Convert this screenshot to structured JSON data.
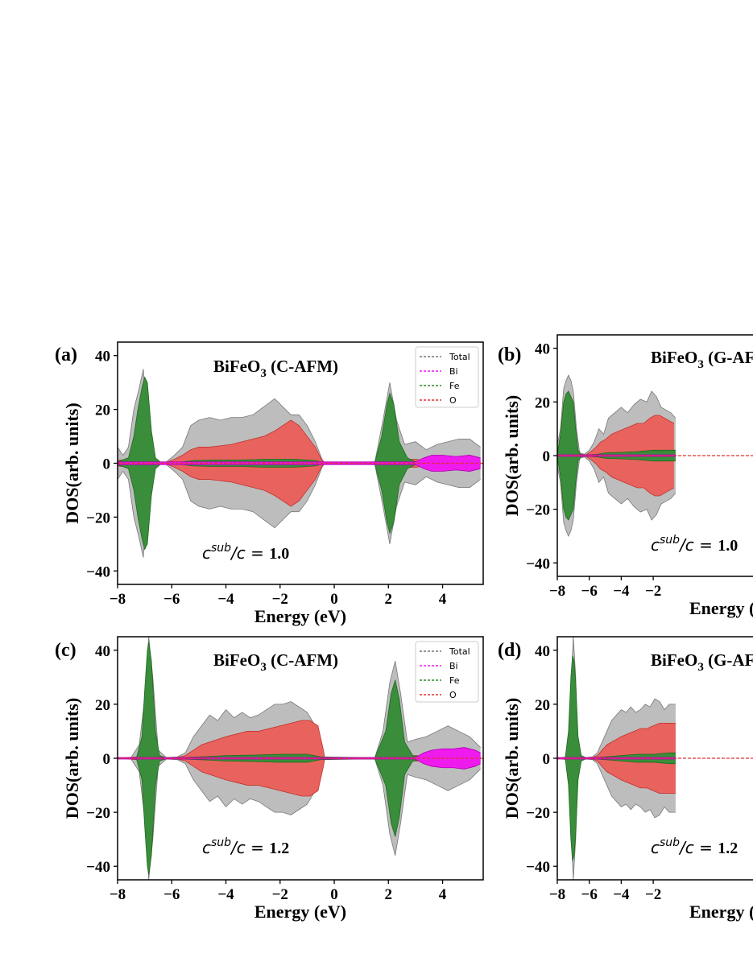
{
  "chart_data": [
    {
      "panel": "(a)",
      "type": "area",
      "title_main": "BiFeO",
      "title_sub": "3",
      "title_rest": " (C-AFM)",
      "xlabel": "Energy (eV)",
      "ylabel": "DOS(arb. units)",
      "xlim": [
        -8,
        5.5
      ],
      "ylim": [
        -45,
        45
      ],
      "xticks": [
        "-8",
        "-6",
        "-4",
        "-2",
        "0",
        "2",
        "4"
      ],
      "yticks": [
        "-40",
        "-20",
        "0",
        "20",
        "40"
      ],
      "ratio_c": "c",
      "ratio_sup": "sub",
      "ratio_sep": "/c = ",
      "ratio_value": "1.0",
      "legend": [
        "Total",
        "Bi",
        "Fe",
        "O"
      ],
      "series": [
        {
          "name": "Total",
          "color": "#bdbdbd",
          "x": [
            -8,
            -7.8,
            -7.6,
            -7.4,
            -7.2,
            -7.05,
            -6.9,
            -6.7,
            -6.5,
            -6.2,
            -5.9,
            -5.6,
            -5.3,
            -5.0,
            -4.6,
            -4.2,
            -3.8,
            -3.4,
            -3.0,
            -2.6,
            -2.2,
            -1.9,
            -1.6,
            -1.3,
            -1.0,
            -0.7,
            -0.45,
            -0.35,
            1.5,
            1.8,
            2.05,
            2.3,
            2.6,
            3.0,
            3.4,
            3.8,
            4.2,
            4.6,
            5.0,
            5.4
          ],
          "y": [
            6,
            3,
            6,
            20,
            28,
            35,
            14,
            3,
            0.3,
            0.5,
            3,
            6,
            14,
            16,
            17,
            16,
            17,
            17,
            18,
            21,
            24,
            21,
            18,
            18,
            14,
            8,
            1.5,
            0,
            0.5,
            16,
            30,
            16,
            7,
            8,
            5,
            7,
            8,
            9,
            9,
            6
          ]
        },
        {
          "name": "O",
          "color": "#e8635e",
          "x": [
            -8,
            -7.6,
            -7.3,
            -7.1,
            -6.9,
            -6.6,
            -6.2,
            -5.9,
            -5.6,
            -5.3,
            -5.0,
            -4.6,
            -4.2,
            -3.8,
            -3.4,
            -3.0,
            -2.6,
            -2.2,
            -1.9,
            -1.6,
            -1.3,
            -1.0,
            -0.7,
            -0.45,
            -0.35,
            1.5,
            1.8,
            2.05,
            2.3,
            2.6,
            3.0,
            3.4,
            3.8,
            4.2,
            4.6,
            5.0,
            5.4
          ],
          "y": [
            1,
            1.5,
            2,
            2.5,
            2,
            0.5,
            0.3,
            1.5,
            3,
            5,
            6,
            6,
            6.5,
            7,
            8,
            9,
            10,
            12,
            14,
            16,
            14,
            10,
            6,
            1,
            0,
            0.5,
            1.5,
            2.5,
            2,
            1.5,
            1.5,
            1,
            1,
            1.2,
            1.3,
            1.2,
            1
          ]
        },
        {
          "name": "Fe",
          "color": "#3a8d3a",
          "x": [
            -8,
            -7.6,
            -7.4,
            -7.25,
            -7.1,
            -7.0,
            -6.9,
            -6.75,
            -6.6,
            -6.4,
            -6.0,
            -5.6,
            -5.2,
            -4.5,
            -3.5,
            -2.5,
            -1.5,
            -0.7,
            -0.4,
            1.5,
            1.75,
            1.95,
            2.05,
            2.2,
            2.4,
            2.7,
            3.0,
            3.5,
            4.0,
            5.0,
            5.4
          ],
          "y": [
            0.5,
            2,
            10,
            20,
            28,
            32,
            30,
            12,
            2,
            0.3,
            0.3,
            0.5,
            1,
            1.2,
            1.2,
            1.5,
            1.5,
            1,
            0.2,
            0.3,
            10,
            22,
            26,
            22,
            8,
            2,
            0.5,
            0.5,
            0.5,
            0.5,
            0.5
          ]
        },
        {
          "name": "Bi",
          "color": "#ee1aee",
          "x": [
            -8,
            3.0,
            3.3,
            3.6,
            4.0,
            4.5,
            5.0,
            5.4
          ],
          "y": [
            0.5,
            0.5,
            2,
            3,
            3,
            2.5,
            3,
            2
          ]
        }
      ]
    },
    {
      "panel": "(b)",
      "type": "area",
      "title_main": "BiFeO",
      "title_sub": "3",
      "title_rest": " (G-AFM)",
      "xlabel": "Energy (eV)",
      "ylabel": "DOS(arb. units)",
      "xlim": [
        -8,
        5.5
      ],
      "ylim": [
        -45,
        45
      ],
      "xticks": [
        "-8",
        "-6",
        "-4",
        "-2"
      ],
      "yticks": [
        "-40",
        "-20",
        "0",
        "20",
        "40"
      ],
      "ratio_c": "c",
      "ratio_sup": "sub",
      "ratio_sep": "/c = ",
      "ratio_value": "1.0",
      "series": [
        {
          "name": "Total",
          "color": "#bdbdbd",
          "x": [
            -8,
            -7.8,
            -7.6,
            -7.45,
            -7.3,
            -7.15,
            -7.0,
            -6.8,
            -6.6,
            -6.3,
            -6.0,
            -5.7,
            -5.4,
            -5.1,
            -4.8,
            -4.4,
            -4.0,
            -3.6,
            -3.2,
            -2.8,
            -2.4,
            -2.1,
            -1.8,
            -1.5,
            -1.2,
            -0.9,
            -0.6
          ],
          "y": [
            4,
            10,
            25,
            28,
            30,
            28,
            24,
            10,
            1,
            0.5,
            2,
            5,
            10,
            8,
            14,
            16,
            18,
            16,
            19,
            21,
            20,
            24,
            22,
            18,
            17,
            16,
            14
          ]
        },
        {
          "name": "O",
          "color": "#e8635e",
          "x": [
            -8,
            -7.6,
            -7.3,
            -7.1,
            -6.9,
            -6.6,
            -6.2,
            -5.9,
            -5.6,
            -5.3,
            -5.0,
            -4.6,
            -4.2,
            -3.8,
            -3.4,
            -3.0,
            -2.6,
            -2.2,
            -1.9,
            -1.6,
            -1.3,
            -1.0,
            -0.7
          ],
          "y": [
            1,
            2,
            3,
            3.5,
            2,
            0.5,
            0.3,
            1.5,
            3,
            5,
            6,
            8,
            9,
            10,
            11,
            12,
            12,
            14,
            15,
            15,
            14,
            13,
            12
          ]
        },
        {
          "name": "Fe",
          "color": "#3a8d3a",
          "x": [
            -8,
            -7.8,
            -7.6,
            -7.45,
            -7.3,
            -7.15,
            -7.0,
            -6.85,
            -6.7,
            -6.5,
            -6.0,
            -5.5,
            -5.0,
            -4.0,
            -3.0,
            -2.0,
            -1.0,
            -0.6
          ],
          "y": [
            0.5,
            8,
            20,
            23,
            24,
            22,
            20,
            10,
            2,
            0.3,
            0.3,
            0.5,
            1,
            1.2,
            1.5,
            2,
            2,
            2
          ]
        },
        {
          "name": "Bi",
          "color": "#ee1aee",
          "x": [
            -8,
            -0.6
          ],
          "y": [
            0.3,
            0.3
          ]
        }
      ]
    },
    {
      "panel": "(c)",
      "type": "area",
      "title_main": "BiFeO",
      "title_sub": "3",
      "title_rest": " (C-AFM)",
      "xlabel": "Energy (eV)",
      "ylabel": "DOS(arb. units)",
      "xlim": [
        -8,
        5.5
      ],
      "ylim": [
        -45,
        45
      ],
      "xticks": [
        "-8",
        "-6",
        "-4",
        "-2",
        "0",
        "2",
        "4"
      ],
      "yticks": [
        "-40",
        "-20",
        "0",
        "20",
        "40"
      ],
      "ratio_c": "c",
      "ratio_sup": "sub",
      "ratio_sep": "/c = ",
      "ratio_value": "1.2",
      "legend": [
        "Total",
        "Bi",
        "Fe",
        "O"
      ],
      "series": [
        {
          "name": "Total",
          "color": "#bdbdbd",
          "x": [
            -8,
            -7.5,
            -7.2,
            -7.0,
            -6.85,
            -6.7,
            -6.5,
            -6.2,
            -5.8,
            -5.5,
            -5.2,
            -4.9,
            -4.6,
            -4.3,
            -4.0,
            -3.7,
            -3.4,
            -3.1,
            -2.8,
            -2.5,
            -2.2,
            -1.9,
            -1.6,
            -1.3,
            -1.0,
            -0.7,
            -0.45,
            -0.35,
            1.5,
            1.8,
            2.05,
            2.25,
            2.45,
            2.7,
            3.0,
            3.4,
            3.8,
            4.2,
            4.6,
            5.0,
            5.4
          ],
          "y": [
            0,
            0.3,
            5,
            22,
            45,
            30,
            3,
            0.3,
            0.5,
            2,
            8,
            12,
            16,
            14,
            18,
            15,
            17,
            15,
            16,
            18,
            20,
            20,
            21,
            19,
            17,
            12,
            2,
            0,
            0.3,
            10,
            28,
            36,
            24,
            6,
            7,
            8,
            10,
            12,
            10,
            8,
            4
          ]
        },
        {
          "name": "O",
          "color": "#e8635e",
          "x": [
            -8,
            -7.3,
            -7.0,
            -6.85,
            -6.7,
            -6.5,
            -6.2,
            -5.8,
            -5.5,
            -5.2,
            -4.9,
            -4.6,
            -4.3,
            -4.0,
            -3.6,
            -3.2,
            -2.8,
            -2.4,
            -2.0,
            -1.6,
            -1.2,
            -0.9,
            -0.6,
            -0.4,
            -0.35,
            1.5,
            1.8,
            2.1,
            2.3,
            2.5,
            2.8,
            3.2,
            3.6,
            4.0,
            4.4,
            4.8,
            5.2,
            5.4
          ],
          "y": [
            0,
            0.5,
            3,
            4,
            3,
            0.5,
            0.2,
            0.3,
            1,
            3,
            5,
            6,
            7,
            8,
            9,
            10,
            10,
            11,
            12,
            13,
            14,
            14,
            12,
            3,
            0,
            0.3,
            1,
            3,
            4,
            2.5,
            1,
            1,
            1.2,
            1.3,
            1.4,
            1.3,
            1,
            0.8
          ]
        },
        {
          "name": "Fe",
          "color": "#3a8d3a",
          "x": [
            -8,
            -7.3,
            -7.1,
            -7.0,
            -6.9,
            -6.85,
            -6.75,
            -6.6,
            -6.45,
            -6.2,
            -5.8,
            -5.0,
            -4.0,
            -3.0,
            -2.0,
            -1.0,
            -0.5,
            1.5,
            1.9,
            2.1,
            2.25,
            2.4,
            2.6,
            2.9,
            3.2,
            4.0,
            5.0,
            5.4
          ],
          "y": [
            0,
            0.3,
            8,
            25,
            40,
            43,
            36,
            10,
            1,
            0.2,
            0.2,
            0.5,
            1,
            1.2,
            1.5,
            1.5,
            0.5,
            0.2,
            10,
            24,
            29,
            22,
            6,
            1,
            0.5,
            0.5,
            0.5,
            0.3
          ]
        },
        {
          "name": "Bi",
          "color": "#ee1aee",
          "x": [
            -8,
            3.0,
            3.3,
            3.6,
            4.0,
            4.4,
            4.8,
            5.2,
            5.4
          ],
          "y": [
            0.3,
            0.3,
            2,
            3,
            3.5,
            3.5,
            4,
            3,
            2
          ]
        }
      ]
    },
    {
      "panel": "(d)",
      "type": "area",
      "title_main": "BiFeO",
      "title_sub": "3",
      "title_rest": " (G-AFM)",
      "xlabel": "Energy (eV)",
      "ylabel": "DOS(arb. units)",
      "xlim": [
        -8,
        5.5
      ],
      "ylim": [
        -45,
        45
      ],
      "xticks": [
        "-8",
        "-6",
        "-4",
        "-2"
      ],
      "yticks": [
        "-40",
        "-20",
        "0",
        "20",
        "40"
      ],
      "ratio_c": "c",
      "ratio_sup": "sub",
      "ratio_sep": "/c = ",
      "ratio_value": "1.2",
      "series": [
        {
          "name": "Total",
          "color": "#bdbdbd",
          "x": [
            -8,
            -7.5,
            -7.3,
            -7.15,
            -7.0,
            -6.85,
            -6.7,
            -6.5,
            -6.2,
            -5.8,
            -5.5,
            -5.2,
            -4.9,
            -4.6,
            -4.3,
            -4.0,
            -3.7,
            -3.4,
            -3.1,
            -2.8,
            -2.5,
            -2.2,
            -1.9,
            -1.6,
            -1.3,
            -1.0,
            -0.6
          ],
          "y": [
            0,
            0.3,
            5,
            25,
            45,
            30,
            3,
            0.3,
            0.3,
            0.5,
            2,
            6,
            10,
            14,
            16,
            18,
            17,
            19,
            17,
            18,
            20,
            19,
            22,
            21,
            18,
            20,
            20
          ]
        },
        {
          "name": "O",
          "color": "#e8635e",
          "x": [
            -8,
            -7.4,
            -7.15,
            -7.0,
            -6.85,
            -6.7,
            -6.5,
            -6.2,
            -5.8,
            -5.5,
            -5.2,
            -4.9,
            -4.6,
            -4.3,
            -4.0,
            -3.6,
            -3.2,
            -2.8,
            -2.4,
            -2.0,
            -1.6,
            -1.2,
            -0.8,
            -0.6
          ],
          "y": [
            0,
            0.5,
            3,
            4,
            3,
            1,
            0.3,
            0.2,
            0.3,
            1,
            3,
            5,
            6,
            7,
            8,
            9,
            10,
            11,
            11,
            12,
            13,
            13,
            13,
            13
          ]
        },
        {
          "name": "Fe",
          "color": "#3a8d3a",
          "x": [
            -8,
            -7.5,
            -7.3,
            -7.15,
            -7.05,
            -6.95,
            -6.85,
            -6.7,
            -6.5,
            -6.2,
            -5.8,
            -5.0,
            -4.0,
            -3.0,
            -2.0,
            -1.0,
            -0.6
          ],
          "y": [
            0,
            0.3,
            10,
            30,
            38,
            36,
            28,
            8,
            1,
            0.2,
            0.2,
            0.5,
            1,
            1.5,
            1.5,
            2,
            2
          ]
        },
        {
          "name": "Bi",
          "color": "#ee1aee",
          "x": [
            -8,
            -0.6
          ],
          "y": [
            0.3,
            0.3
          ]
        }
      ]
    }
  ]
}
